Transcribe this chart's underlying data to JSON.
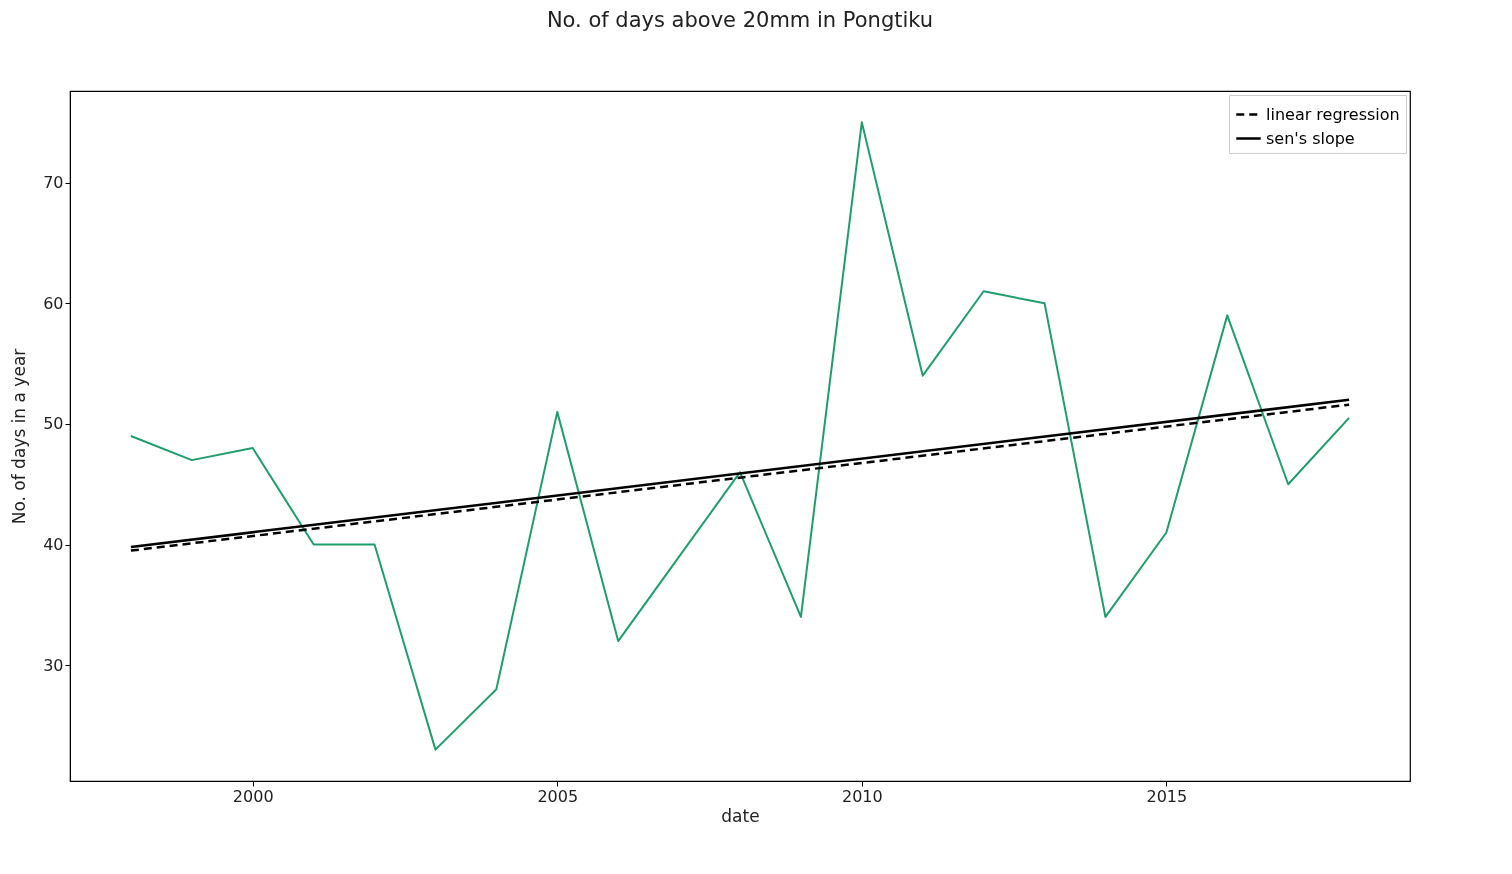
{
  "chart_data": {
    "type": "line",
    "title": "No. of days above 20mm in Pongtiku",
    "xlabel": "date",
    "ylabel": "No. of days in a year",
    "xlim": [
      1997,
      2019
    ],
    "xticks": [
      2000,
      2005,
      2010,
      2015
    ],
    "ylim": [
      20.4,
      77.6
    ],
    "yticks": [
      30,
      40,
      50,
      60,
      70
    ],
    "grid": false,
    "legend": "top right",
    "marker": "none",
    "series": [
      {
        "color": "#1f9e6c",
        "line_style": "solid",
        "x": [
          1998,
          1999,
          2000,
          2001,
          2002,
          2003,
          2004,
          2005,
          2006,
          2007,
          2008,
          2009,
          2010,
          2011,
          2012,
          2013,
          2014,
          2015,
          2016,
          2017,
          2018
        ],
        "values": [
          49,
          47,
          48,
          40,
          40,
          23,
          28,
          51,
          32,
          39,
          46,
          34,
          75,
          54,
          61,
          60,
          34,
          41,
          59,
          45,
          50.5
        ]
      },
      {
        "name": "linear regression",
        "color": "#000000",
        "line_style": "dashed",
        "x": [
          1998,
          2018
        ],
        "values": [
          39.5,
          51.6
        ]
      },
      {
        "name": "sen's slope",
        "color": "#000000",
        "line_style": "solid",
        "x": [
          1998,
          2018
        ],
        "values": [
          39.8,
          52
        ]
      }
    ]
  }
}
